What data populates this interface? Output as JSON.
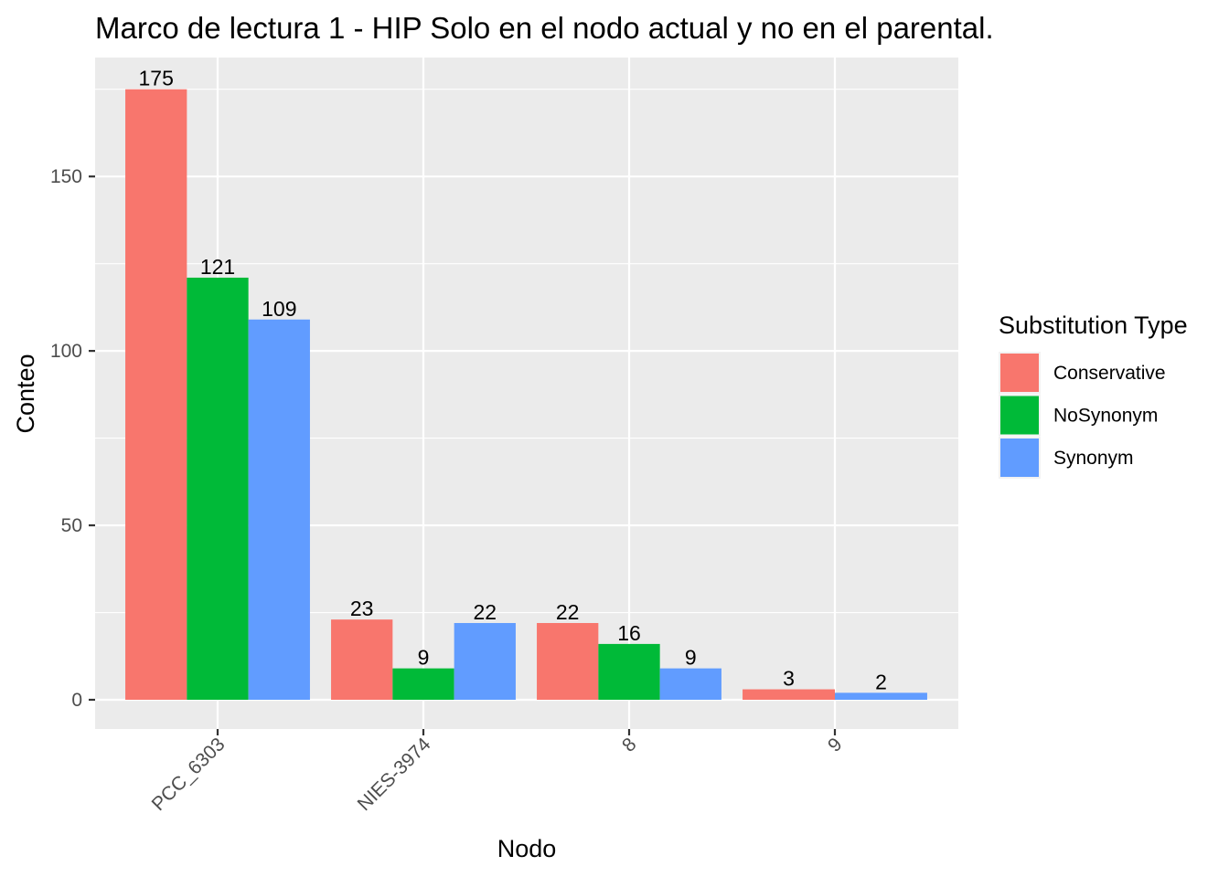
{
  "chart_data": {
    "type": "bar",
    "title": "Marco de lectura 1 - HIP Solo en el nodo actual y no en el parental.",
    "xlabel": "Nodo",
    "ylabel": "Conteo",
    "categories": [
      "PCC_6303",
      "NIES-3974",
      "8",
      "9"
    ],
    "yticks": [
      0,
      50,
      100,
      150
    ],
    "series": [
      {
        "name": "Conservative",
        "color": "#F8766D",
        "values": [
          175,
          23,
          22,
          3
        ]
      },
      {
        "name": "NoSynonym",
        "color": "#00BA38",
        "values": [
          121,
          9,
          16,
          null
        ]
      },
      {
        "name": "Synonym",
        "color": "#619CFF",
        "values": [
          109,
          22,
          9,
          2
        ]
      }
    ],
    "legend": {
      "title": "Substitution Type",
      "placement": "right"
    },
    "panel_background": "#EBEBEB",
    "grid_color": "#FFFFFF",
    "grid": true
  }
}
